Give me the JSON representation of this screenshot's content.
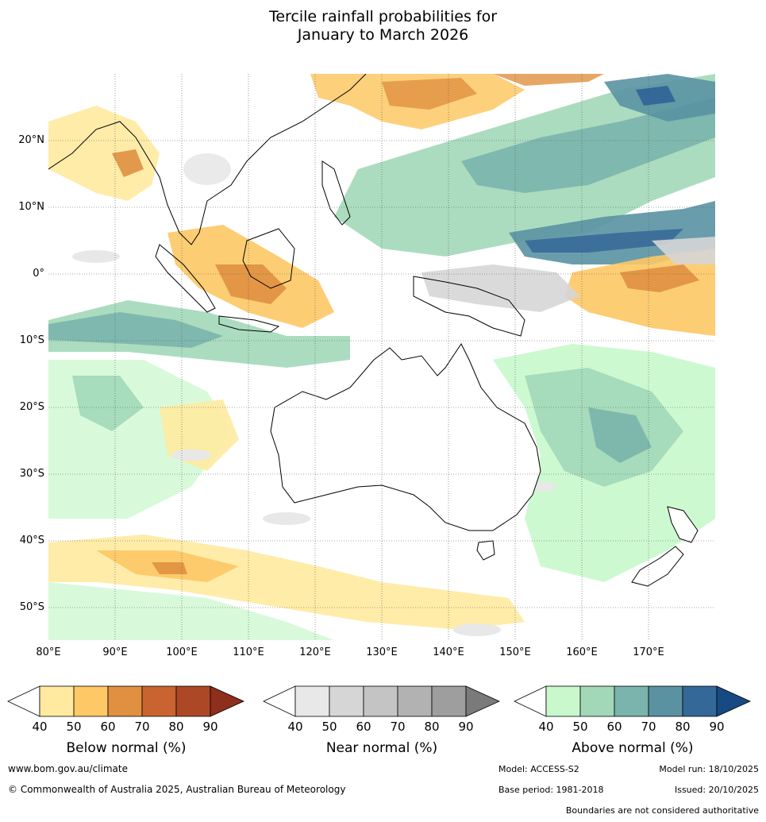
{
  "title_line1": "Tercile rainfall probabilities for",
  "title_line2": "January to March 2026",
  "latitude_labels": [
    "20°N",
    "10°N",
    "0°",
    "10°S",
    "20°S",
    "30°S",
    "40°S",
    "50°S"
  ],
  "longitude_labels": [
    "80°E",
    "90°E",
    "100°E",
    "110°E",
    "120°E",
    "130°E",
    "140°E",
    "150°E",
    "160°E",
    "170°E"
  ],
  "colorbars": [
    {
      "label": "Below normal (%)",
      "ticks": [
        "40",
        "50",
        "60",
        "70",
        "80",
        "90"
      ],
      "colors": [
        "#ffffff",
        "#ffeaa0",
        "#fdc865",
        "#e09040",
        "#c96430",
        "#ad4826",
        "#8e2e1c"
      ]
    },
    {
      "label": "Near normal (%)",
      "ticks": [
        "40",
        "50",
        "60",
        "70",
        "80",
        "90"
      ],
      "colors": [
        "#ffffff",
        "#e8e8e8",
        "#d6d6d6",
        "#c4c4c4",
        "#b2b2b2",
        "#9e9e9e",
        "#7a7a7a"
      ]
    },
    {
      "label": "Above normal (%)",
      "ticks": [
        "40",
        "50",
        "60",
        "70",
        "80",
        "90"
      ],
      "colors": [
        "#ffffff",
        "#c8f8cc",
        "#a2d8b8",
        "#7ab4ac",
        "#5a92a2",
        "#346898",
        "#174a82"
      ]
    }
  ],
  "footer": {
    "website": "www.bom.gov.au/climate",
    "copyright": "© Commonwealth of Australia 2025, Australian Bureau of Meteorology",
    "model": "Model: ACCESS-S2",
    "model_run": "Model run: 18/10/2025",
    "base_period": "Base period: 1981-2018",
    "issued": "Issued: 20/10/2025",
    "disclaimer": "Boundaries are not considered authoritative"
  }
}
